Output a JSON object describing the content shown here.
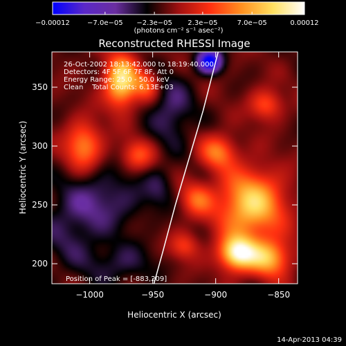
{
  "chart_data": {
    "type": "heatmap",
    "title": "Reconstructed RHESSI Image",
    "xlabel": "Heliocentric X (arcsec)",
    "ylabel": "Heliocentric Y (arcsec)",
    "xlim": [
      -1030,
      -835
    ],
    "ylim": [
      183,
      380
    ],
    "x_ticks": [
      -1000,
      -950,
      -900,
      -850
    ],
    "x_tick_labels": [
      "−1000",
      "−950",
      "−900",
      "−850"
    ],
    "y_ticks": [
      200,
      250,
      300,
      350
    ],
    "y_tick_labels": [
      "200",
      "250",
      "300",
      "350"
    ],
    "colorbar": {
      "range": [
        -0.00012,
        0.00012
      ],
      "ticks": [
        -0.00012,
        -7e-05,
        -2.3e-05,
        2.3e-05,
        7e-05,
        0.00012
      ],
      "tick_labels": [
        "−0.00012",
        "−7.0e−05",
        "−2.3e−05",
        "2.3e−05",
        "7.0e−05",
        "0.00012"
      ],
      "units": "(photons cm⁻² s⁻¹ asec⁻²)",
      "colors": [
        "#0000ff",
        "#5a28c8",
        "#6a2ea0",
        "#000000",
        "#a01010",
        "#ff3010",
        "#ff9020",
        "#ffe060",
        "#ffffff"
      ]
    },
    "annotations": [
      "26-Oct-2002 18:13:42.000 to 18:19:40.000",
      "Detectors: 4F 5F 6F 7F 8F, Att 0",
      "Energy Range: 25.0 - 50.0 keV",
      "Clean    Total Counts: 6.13E+03"
    ],
    "peak_label": "Position of Peak = [-883,209]",
    "limb_curve": [
      [
        -949,
        183
      ],
      [
        -942,
        210
      ],
      [
        -932,
        250
      ],
      [
        -921,
        290
      ],
      [
        -910,
        330
      ],
      [
        -898,
        380
      ]
    ],
    "sources": [
      {
        "x": -975,
        "y": 355,
        "value": 0.00011,
        "sx": 9,
        "sy": 15
      },
      {
        "x": -1005,
        "y": 300,
        "value": 7e-05,
        "sx": 10,
        "sy": 14
      },
      {
        "x": -962,
        "y": 292,
        "value": 5e-05,
        "sx": 9,
        "sy": 9
      },
      {
        "x": -955,
        "y": 352,
        "value": 5e-05,
        "sx": 7,
        "sy": 9
      },
      {
        "x": -872,
        "y": 250,
        "value": 0.0001,
        "sx": 18,
        "sy": 20
      },
      {
        "x": -883,
        "y": 209,
        "value": 0.00012,
        "sx": 10,
        "sy": 10
      },
      {
        "x": -858,
        "y": 205,
        "value": 8.5e-05,
        "sx": 12,
        "sy": 11
      },
      {
        "x": -915,
        "y": 255,
        "value": 5e-05,
        "sx": 9,
        "sy": 10
      },
      {
        "x": -898,
        "y": 295,
        "value": 6e-05,
        "sx": 10,
        "sy": 10
      },
      {
        "x": -860,
        "y": 335,
        "value": 5e-05,
        "sx": 9,
        "sy": 9
      },
      {
        "x": -925,
        "y": 215,
        "value": 4e-05,
        "sx": 8,
        "sy": 8
      },
      {
        "x": -1015,
        "y": 230,
        "value": -3e-05,
        "sx": 18,
        "sy": 25
      },
      {
        "x": -985,
        "y": 255,
        "value": -3.5e-05,
        "sx": 22,
        "sy": 18
      },
      {
        "x": -975,
        "y": 200,
        "value": -3e-05,
        "sx": 18,
        "sy": 12
      },
      {
        "x": -935,
        "y": 330,
        "value": -4e-05,
        "sx": 12,
        "sy": 20
      },
      {
        "x": -905,
        "y": 372,
        "value": -0.00011,
        "sx": 7,
        "sy": 7
      },
      {
        "x": -945,
        "y": 265,
        "value": -2.5e-05,
        "sx": 8,
        "sy": 12
      }
    ]
  },
  "footer_text": "14-Apr-2013 04:39"
}
